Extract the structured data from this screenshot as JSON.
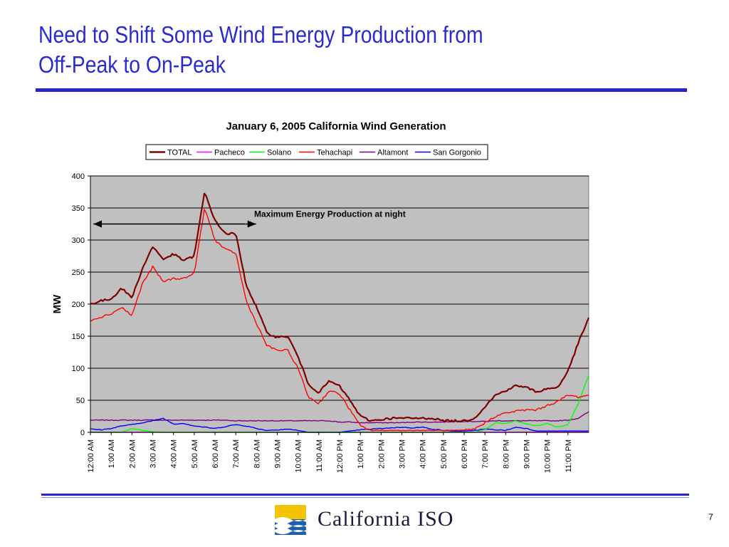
{
  "slide": {
    "title_line1": "Need to Shift Some Wind Energy Production from",
    "title_line2": "Off-Peak to On-Peak",
    "logo_text": "California ISO",
    "page_number": "7"
  },
  "colors": {
    "title": "#2b2bd0",
    "rule": "#2525c8",
    "plot_bg": "#c0c0c0",
    "TOTAL": "#800000",
    "Pacheco": "#ff00ff",
    "Solano": "#00ff00",
    "Tehachapi": "#ff0000",
    "Altamont": "#800080",
    "San Gorgonio": "#0000ff"
  },
  "chart_data": {
    "type": "line",
    "title": "January 6, 2005  California Wind Generation",
    "xlabel": "",
    "ylabel": "MW",
    "ylim": [
      0,
      400
    ],
    "yticks": [
      0,
      50,
      100,
      150,
      200,
      250,
      300,
      350,
      400
    ],
    "grid": true,
    "legend_position": "top-center",
    "x_tick_labels": [
      "12:00 AM",
      "1:00 AM",
      "2:00 AM",
      "3:00 AM",
      "4:00 AM",
      "5:00 AM",
      "6:00 AM",
      "7:00 AM",
      "8:00 AM",
      "9:00 AM",
      "10:00 AM",
      "11:00 AM",
      "12:00 PM",
      "1:00 PM",
      "2:00 PM",
      "3:00 PM",
      "4:00 PM",
      "5:00 PM",
      "6:00 PM",
      "7:00 PM",
      "8:00 PM",
      "9:00 PM",
      "10:00 PM",
      "11:00 PM"
    ],
    "x_hours": [
      0,
      0.5,
      1,
      1.5,
      2,
      2.5,
      3,
      3.5,
      4,
      4.5,
      5,
      5.5,
      6,
      6.5,
      7,
      7.5,
      8,
      8.5,
      9,
      9.5,
      10,
      10.5,
      11,
      11.5,
      12,
      12.5,
      13,
      13.5,
      14,
      14.5,
      15,
      15.5,
      16,
      16.5,
      17,
      17.5,
      18,
      18.5,
      19,
      19.5,
      20,
      20.5,
      21,
      21.5,
      22,
      22.5,
      23,
      23.5,
      24
    ],
    "series": [
      {
        "name": "TOTAL",
        "values": [
          200,
          205,
          208,
          225,
          210,
          255,
          290,
          270,
          278,
          268,
          275,
          375,
          330,
          310,
          310,
          230,
          195,
          155,
          148,
          150,
          118,
          75,
          62,
          80,
          72,
          50,
          25,
          18,
          20,
          22,
          22,
          22,
          22,
          22,
          18,
          18,
          18,
          22,
          40,
          58,
          65,
          73,
          70,
          63,
          68,
          70,
          95,
          140,
          178
        ]
      },
      {
        "name": "Pacheco",
        "values": [
          0,
          0,
          0,
          0,
          0,
          0,
          0,
          0,
          0,
          0,
          0,
          0,
          0,
          0,
          0,
          0,
          0,
          0,
          0,
          0,
          0,
          0,
          0,
          0,
          0,
          0,
          0,
          0,
          0,
          0,
          0,
          0,
          0,
          0,
          0,
          0,
          0,
          0,
          0,
          0,
          0,
          0,
          0,
          0,
          0,
          0,
          0,
          0,
          0
        ]
      },
      {
        "name": "Solano",
        "values": [
          0,
          0,
          0,
          0,
          6,
          3,
          1,
          0,
          0,
          0,
          0,
          0,
          0,
          0,
          0,
          0,
          0,
          0,
          0,
          0,
          0,
          0,
          0,
          0,
          0,
          0,
          0,
          0,
          0,
          0,
          0,
          0,
          0,
          0,
          0,
          0,
          0,
          0,
          4,
          15,
          14,
          18,
          13,
          10,
          14,
          8,
          12,
          45,
          90
        ]
      },
      {
        "name": "Tehachapi",
        "values": [
          175,
          180,
          185,
          195,
          182,
          232,
          258,
          235,
          240,
          240,
          248,
          350,
          300,
          285,
          280,
          205,
          170,
          135,
          128,
          128,
          100,
          55,
          45,
          65,
          60,
          35,
          10,
          3,
          3,
          3,
          3,
          3,
          3,
          3,
          3,
          3,
          3,
          5,
          15,
          25,
          30,
          33,
          35,
          35,
          42,
          48,
          58,
          55,
          58
        ]
      },
      {
        "name": "Altamont",
        "values": [
          19,
          19,
          19,
          19,
          19,
          19,
          19,
          19,
          19,
          19,
          19,
          19,
          19,
          19,
          18,
          18,
          18,
          18,
          18,
          18,
          18,
          18,
          18,
          18,
          16,
          16,
          15,
          15,
          15,
          15,
          15,
          16,
          16,
          16,
          16,
          17,
          17,
          17,
          17,
          18,
          18,
          18,
          18,
          18,
          18,
          18,
          19,
          22,
          32
        ]
      },
      {
        "name": "San Gorgonio",
        "values": [
          5,
          4,
          6,
          10,
          12,
          15,
          18,
          22,
          13,
          14,
          10,
          8,
          6,
          9,
          12,
          10,
          6,
          3,
          4,
          5,
          3,
          0,
          0,
          0,
          0,
          2,
          4,
          5,
          6,
          7,
          8,
          7,
          8,
          5,
          3,
          2,
          2,
          3,
          5,
          4,
          3,
          8,
          6,
          2,
          2,
          2,
          2,
          2,
          2
        ]
      }
    ],
    "annotations": [
      {
        "text": "Maximum Energy Production at night",
        "arrow_from_hour": 0,
        "arrow_to_hour": 7.5,
        "arrow_at_value": 325
      }
    ]
  }
}
